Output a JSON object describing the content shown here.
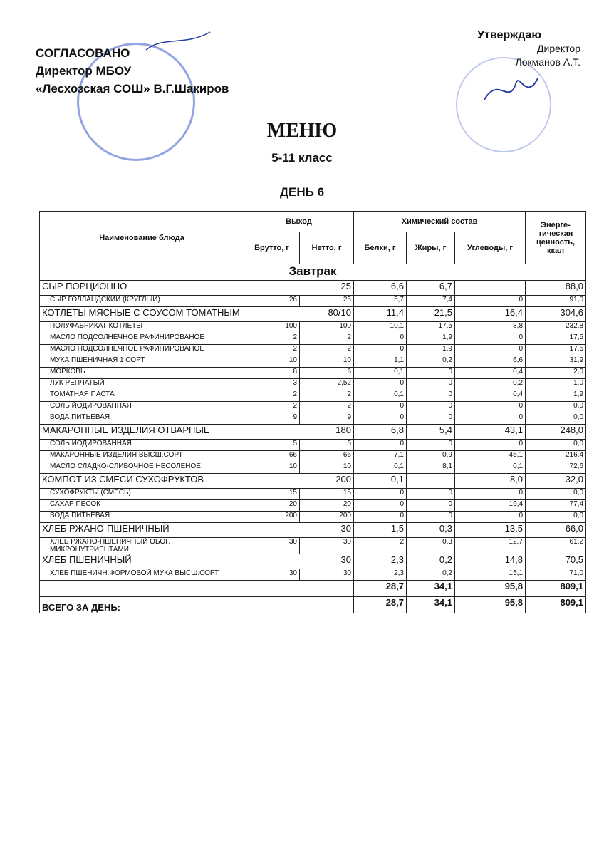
{
  "approval_left": {
    "line1": "СОГЛАСОВАНО",
    "line2": "Директор МБОУ",
    "line3": "«Лесхозская СОШ» В.Г.Шакиров"
  },
  "approval_right": {
    "line1": "Утверждаю",
    "line2": "Директор",
    "line3": "Локманов А.Т."
  },
  "title": "МЕНЮ",
  "grade": "5-11 класс",
  "day": "ДЕНЬ 6",
  "headers": {
    "name": "Наименование блюда",
    "output": "Выход",
    "chem": "Химический состав",
    "energy": "Энерге-тическая ценность, ккал",
    "brutto": "Брутто, г",
    "netto": "Нетто, г",
    "protein": "Белки, г",
    "fat": "Жиры, г",
    "carbs": "Углеводы, г"
  },
  "section": "Завтрак",
  "rows": [
    {
      "type": "main",
      "name": "СЫР ПОРЦИОННО",
      "brutto": "",
      "netto": "25",
      "protein": "6,6",
      "fat": "6,7",
      "carbs": "",
      "energy": "88,0"
    },
    {
      "type": "sub",
      "name": "СЫР ГОЛЛАНДСКИЙ (КРУГЛЫЙ)",
      "brutto": "26",
      "netto": "25",
      "protein": "5,7",
      "fat": "7,4",
      "carbs": "0",
      "energy": "91,0"
    },
    {
      "type": "main",
      "name": "КОТЛЕТЫ МЯСНЫЕ С СОУСОМ ТОМАТНЫМ",
      "brutto": "",
      "netto": "80/10",
      "protein": "11,4",
      "fat": "21,5",
      "carbs": "16,4",
      "energy": "304,6"
    },
    {
      "type": "sub",
      "name": "ПОЛУФАБРИКАТ КОТЛЕТЫ",
      "brutto": "100",
      "netto": "100",
      "protein": "10,1",
      "fat": "17,5",
      "carbs": "8,8",
      "energy": "232,8"
    },
    {
      "type": "sub",
      "name": "МАСЛО ПОДСОЛНЕЧНОЕ РАФИНИРОВАНОЕ",
      "brutto": "2",
      "netto": "2",
      "protein": "0",
      "fat": "1,9",
      "carbs": "0",
      "energy": "17,5"
    },
    {
      "type": "sub",
      "name": "МАСЛО ПОДСОЛНЕЧНОЕ РАФИНИРОВАНОЕ",
      "brutto": "2",
      "netto": "2",
      "protein": "0",
      "fat": "1,9",
      "carbs": "0",
      "energy": "17,5"
    },
    {
      "type": "sub",
      "name": "МУКА ПШЕНИЧНАЯ 1 СОРТ",
      "brutto": "10",
      "netto": "10",
      "protein": "1,1",
      "fat": "0,2",
      "carbs": "6,6",
      "energy": "31,9"
    },
    {
      "type": "sub",
      "name": "МОРКОВЬ",
      "brutto": "8",
      "netto": "6",
      "protein": "0,1",
      "fat": "0",
      "carbs": "0,4",
      "energy": "2,0"
    },
    {
      "type": "sub",
      "name": "ЛУК РЕПЧАТЫЙ",
      "brutto": "3",
      "netto": "2,52",
      "protein": "0",
      "fat": "0",
      "carbs": "0,2",
      "energy": "1,0"
    },
    {
      "type": "sub",
      "name": "ТОМАТНАЯ ПАСТА",
      "brutto": "2",
      "netto": "2",
      "protein": "0,1",
      "fat": "0",
      "carbs": "0,4",
      "energy": "1,9"
    },
    {
      "type": "sub",
      "name": "СОЛЬ  ЙОДИРОВАННАЯ",
      "brutto": "2",
      "netto": "2",
      "protein": "0",
      "fat": "0",
      "carbs": "0",
      "energy": "0,0"
    },
    {
      "type": "sub",
      "name": "ВОДА ПИТЬЕВАЯ",
      "brutto": "9",
      "netto": "9",
      "protein": "0",
      "fat": "0",
      "carbs": "0",
      "energy": "0,0"
    },
    {
      "type": "main",
      "name": "МАКАРОННЫЕ ИЗДЕЛИЯ ОТВАРНЫЕ",
      "brutto": "",
      "netto": "180",
      "protein": "6,8",
      "fat": "5,4",
      "carbs": "43,1",
      "energy": "248,0"
    },
    {
      "type": "sub",
      "name": "СОЛЬ  ЙОДИРОВАННАЯ",
      "brutto": "5",
      "netto": "5",
      "protein": "0",
      "fat": "0",
      "carbs": "0",
      "energy": "0,0"
    },
    {
      "type": "sub",
      "name": "МАКАРОННЫЕ ИЗДЕЛИЯ ВЫСШ.СОРТ",
      "brutto": "66",
      "netto": "66",
      "protein": "7,1",
      "fat": "0,9",
      "carbs": "45,1",
      "energy": "216,4"
    },
    {
      "type": "sub",
      "name": "МАСЛО СЛАДКО-СЛИВОЧНОЕ НЕСОЛЕНОЕ",
      "brutto": "10",
      "netto": "10",
      "protein": "0,1",
      "fat": "8,1",
      "carbs": "0,1",
      "energy": "72,6"
    },
    {
      "type": "main",
      "name": "КОМПОТ ИЗ СМЕСИ СУХОФРУКТОВ",
      "brutto": "",
      "netto": "200",
      "protein": "0,1",
      "fat": "",
      "carbs": "8,0",
      "energy": "32,0"
    },
    {
      "type": "sub",
      "name": "СУХОФРУКТЫ (СМЕСЬ)",
      "brutto": "15",
      "netto": "15",
      "protein": "0",
      "fat": "0",
      "carbs": "0",
      "energy": "0,0"
    },
    {
      "type": "sub",
      "name": "САХАР ПЕСОК",
      "brutto": "20",
      "netto": "20",
      "protein": "0",
      "fat": "0",
      "carbs": "19,4",
      "energy": "77,4"
    },
    {
      "type": "sub",
      "name": "ВОДА ПИТЬЕВАЯ",
      "brutto": "200",
      "netto": "200",
      "protein": "0",
      "fat": "0",
      "carbs": "0",
      "energy": "0,0"
    },
    {
      "type": "main",
      "name": "ХЛЕБ РЖАНО-ПШЕНИЧНЫЙ",
      "brutto": "",
      "netto": "30",
      "protein": "1,5",
      "fat": "0,3",
      "carbs": "13,5",
      "energy": "66,0"
    },
    {
      "type": "sub",
      "name": "ХЛЕБ РЖАНО-ПШЕНИЧНЫЙ ОБОГ. МИКРОНУТРИЕНТАМИ",
      "brutto": "30",
      "netto": "30",
      "protein": "2",
      "fat": "0,3",
      "carbs": "12,7",
      "energy": "61,2"
    },
    {
      "type": "main",
      "name": "ХЛЕБ ПШЕНИЧНЫЙ",
      "brutto": "",
      "netto": "30",
      "protein": "2,3",
      "fat": "0,2",
      "carbs": "14,8",
      "energy": "70,5"
    },
    {
      "type": "sub",
      "name": "ХЛЕБ ПШЕНИЧН.ФОРМОВОЙ МУКА ВЫСШ.СОРТ",
      "brutto": "30",
      "netto": "30",
      "protein": "2,3",
      "fat": "0,2",
      "carbs": "15,1",
      "energy": "71,0"
    }
  ],
  "subtotal": {
    "label": "",
    "protein": "28,7",
    "fat": "34,1",
    "carbs": "95,8",
    "energy": "809,1"
  },
  "total": {
    "label": "ВСЕГО ЗА ДЕНЬ:",
    "protein": "28,7",
    "fat": "34,1",
    "carbs": "95,8",
    "energy": "809,1"
  },
  "colors": {
    "stamp": "#3c5ac8",
    "text": "#111111"
  }
}
